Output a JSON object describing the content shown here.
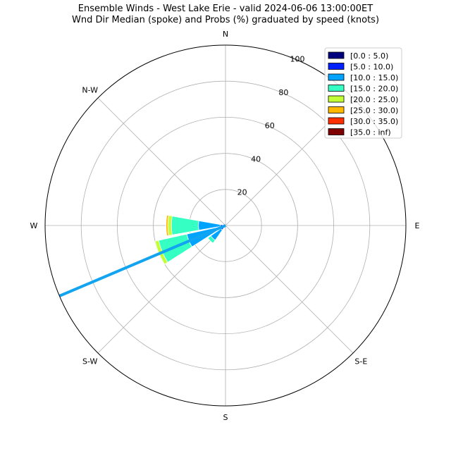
{
  "chart_data": {
    "type": "windrose",
    "title": "Ensemble Winds - West Lake Erie - valid 2024-06-06 13:00:00ET",
    "subtitle": "Wnd Dir Median (spoke) and Probs (%) graduated by speed (knots)",
    "radial_ticks": [
      "20",
      "40",
      "60",
      "80",
      "100"
    ],
    "radial_values": [
      20,
      40,
      60,
      80,
      100
    ],
    "rmax": 100,
    "directions": [
      "N",
      "N-W",
      "W",
      "S-W",
      "S",
      "S-E",
      "E"
    ],
    "bins": [
      {
        "name": "[0.0 : 5.0)",
        "color": "#00007f"
      },
      {
        "name": "[5.0 : 10.0)",
        "color": "#0020ff"
      },
      {
        "name": "[10.0 : 15.0)",
        "color": "#00a4ff"
      },
      {
        "name": "[15.0 : 20.0)",
        "color": "#35ffc2"
      },
      {
        "name": "[20.0 : 25.0)",
        "color": "#c2ff35"
      },
      {
        "name": "[25.0 : 30.0)",
        "color": "#ffb900"
      },
      {
        "name": "[30.0 : 35.0)",
        "color": "#ff3000"
      },
      {
        "name": "[35.0 : inf)",
        "color": "#7f0000"
      }
    ],
    "sectors": [
      {
        "direction_deg": 270,
        "cumulative": [
          1,
          3,
          15,
          30,
          32,
          33
        ]
      },
      {
        "direction_deg": 247.5,
        "cumulative": [
          1,
          3,
          22,
          38,
          40
        ]
      },
      {
        "direction_deg": 225,
        "cumulative": [
          1,
          3,
          10,
          12
        ]
      }
    ],
    "median_spoke": {
      "direction_deg": 247,
      "length": 100,
      "color": "#12a4f0"
    }
  }
}
